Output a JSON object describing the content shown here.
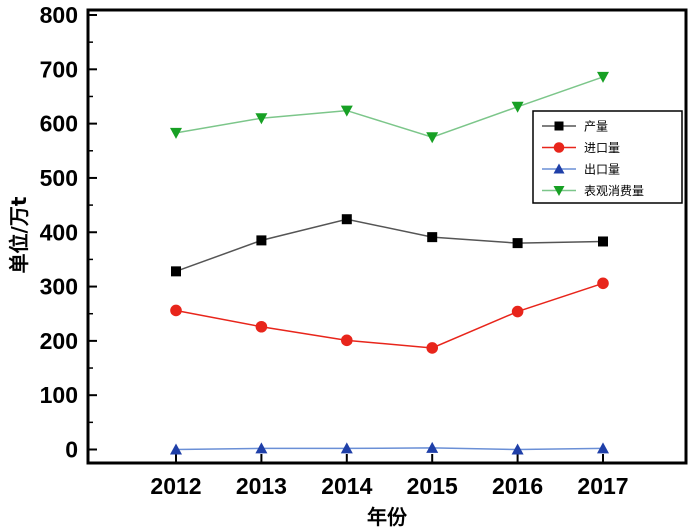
{
  "chart_data": {
    "type": "line",
    "categories": [
      "2012",
      "2013",
      "2014",
      "2015",
      "2016",
      "2017"
    ],
    "xlabel": "年份",
    "ylabel": "单位/万t",
    "ylim": [
      0,
      800
    ],
    "yticks": [
      "0",
      "100",
      "200",
      "300",
      "400",
      "500",
      "600",
      "700",
      "800"
    ],
    "grid": false,
    "legend_position": "right",
    "series": [
      {
        "name": "产量",
        "color": "#000000",
        "line_color": "#555555",
        "marker": "square",
        "values": [
          328,
          385,
          424,
          391,
          380,
          383
        ]
      },
      {
        "name": "进口量",
        "color": "#e8251b",
        "line_color": "#e8251b",
        "marker": "circle",
        "values": [
          256,
          226,
          201,
          187,
          254,
          306
        ]
      },
      {
        "name": "出口量",
        "color": "#1f3fa8",
        "line_color": "#6a8fd6",
        "marker": "triangle-up",
        "values": [
          0,
          2,
          2,
          3,
          0,
          2
        ]
      },
      {
        "name": "表观消费量",
        "color": "#17a024",
        "line_color": "#7cc68a",
        "marker": "triangle-down",
        "values": [
          583,
          610,
          624,
          575,
          631,
          686
        ]
      }
    ]
  }
}
